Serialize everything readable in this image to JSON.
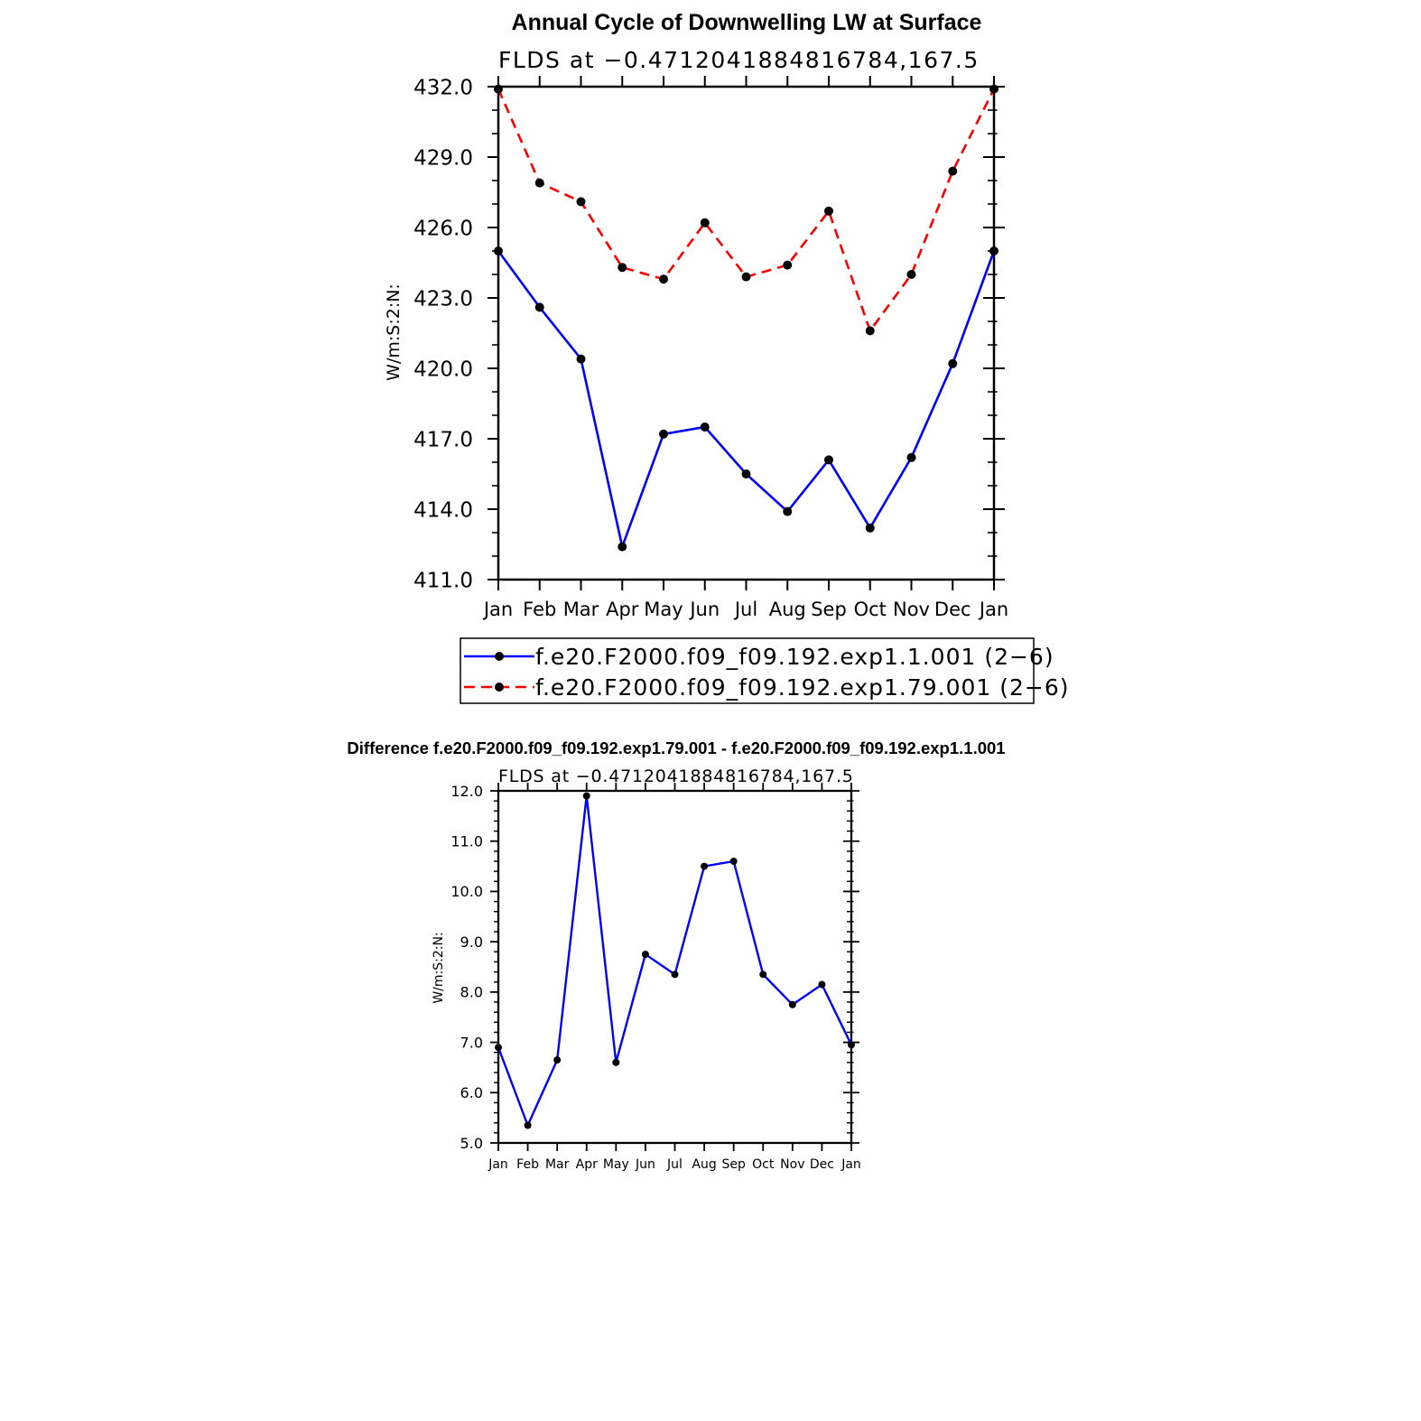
{
  "chart_data": [
    {
      "type": "line",
      "title": "Annual Cycle of Downwelling LW at Surface",
      "subtitle": "FLDS at −0.4712041884816784,167.5",
      "xlabel": "",
      "ylabel": "W/m:S:2:N:",
      "categories": [
        "Jan",
        "Feb",
        "Mar",
        "Apr",
        "May",
        "Jun",
        "Jul",
        "Aug",
        "Sep",
        "Oct",
        "Nov",
        "Dec",
        "Jan"
      ],
      "ylim": [
        411.0,
        432.0
      ],
      "yticks": [
        "411.0",
        "414.0",
        "417.0",
        "420.0",
        "423.0",
        "426.0",
        "429.0",
        "432.0"
      ],
      "grid": false,
      "legend_position": "bottom",
      "series": [
        {
          "name": "f.e20.F2000.f09_f09.192.exp1.1.001 (2−6)",
          "color": "#0000ff",
          "dash": "solid",
          "values": [
            425.0,
            422.6,
            420.4,
            412.4,
            417.2,
            417.5,
            415.5,
            413.9,
            416.1,
            413.2,
            416.2,
            420.2,
            425.0
          ]
        },
        {
          "name": "f.e20.F2000.f09_f09.192.exp1.79.001 (2−6)",
          "color": "#ff0000",
          "dash": "dashed",
          "values": [
            431.9,
            427.9,
            427.1,
            424.3,
            423.8,
            426.2,
            423.9,
            424.4,
            426.7,
            421.6,
            424.0,
            428.4,
            431.9
          ]
        }
      ]
    },
    {
      "type": "line",
      "title": "Difference f.e20.F2000.f09_f09.192.exp1.79.001 - f.e20.F2000.f09_f09.192.exp1.1.001",
      "subtitle": "FLDS at −0.4712041884816784,167.5",
      "xlabel": "",
      "ylabel": "W/m:S:2:N:",
      "categories": [
        "Jan",
        "Feb",
        "Mar",
        "Apr",
        "May",
        "Jun",
        "Jul",
        "Aug",
        "Sep",
        "Oct",
        "Nov",
        "Dec",
        "Jan"
      ],
      "ylim": [
        5.0,
        12.0
      ],
      "yticks": [
        "5.0",
        "6.0",
        "7.0",
        "8.0",
        "9.0",
        "10.0",
        "11.0",
        "12.0"
      ],
      "grid": false,
      "series": [
        {
          "color": "#0000ff",
          "dash": "solid",
          "values": [
            6.9,
            5.35,
            6.65,
            11.9,
            6.6,
            8.75,
            8.35,
            10.5,
            10.6,
            8.35,
            7.75,
            8.15,
            6.95
          ]
        }
      ]
    }
  ]
}
